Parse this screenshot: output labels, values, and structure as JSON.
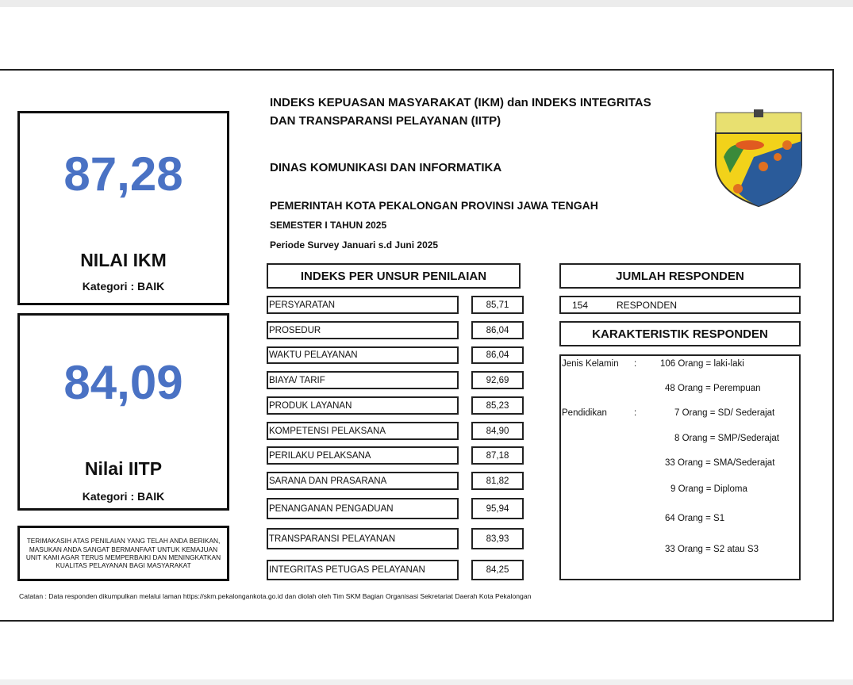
{
  "header": {
    "title_line1": "INDEKS KEPUASAN MASYARAKAT (IKM) dan INDEKS INTEGRITAS",
    "title_line2": "DAN TRANSPARANSI PELAYANAN (IITP)",
    "agency": "DINAS KOMUNIKASI DAN INFORMATIKA",
    "government": "PEMERINTAH KOTA PEKALONGAN PROVINSI JAWA TENGAH",
    "semester": "SEMESTER I TAHUN 2025",
    "period": "Periode Survey Januari s.d Juni 2025"
  },
  "ikm": {
    "value": "87,28",
    "label": "NILAI IKM",
    "category": "Kategori : BAIK"
  },
  "iitp": {
    "value": "84,09",
    "label": "Nilai IITP",
    "category": "Kategori : BAIK"
  },
  "message": "TERIMAKASIH ATAS PENILAIAN YANG TELAH ANDA BERIKAN, MASUKAN ANDA SANGAT BERMANFAAT UNTUK KEMAJUAN UNIT KAMI AGAR TERUS MEMPERBAIKI DAN MENINGKATKAN KUALITAS PELAYANAN BAGI MASYARAKAT",
  "unsur": {
    "title": "INDEKS PER UNSUR PENILAIAN",
    "rows": [
      {
        "label": "PERSYARATAN",
        "value": "85,71"
      },
      {
        "label": "PROSEDUR",
        "value": "86,04"
      },
      {
        "label": "WAKTU PELAYANAN",
        "value": "86,04"
      },
      {
        "label": "BIAYA/ TARIF",
        "value": "92,69"
      },
      {
        "label": "PRODUK LAYANAN",
        "value": "85,23"
      },
      {
        "label": "KOMPETENSI PELAKSANA",
        "value": "84,90"
      },
      {
        "label": "PERILAKU PELAKSANA",
        "value": "87,18"
      },
      {
        "label": "SARANA DAN PRASARANA",
        "value": "81,82"
      },
      {
        "label": "PENANGANAN PENGADUAN",
        "value": "95,94"
      },
      {
        "label": "TRANSPARANSI PELAYANAN",
        "value": "83,93"
      },
      {
        "label": "INTEGRITAS PETUGAS PELAYANAN",
        "value": "84,25"
      }
    ]
  },
  "responden": {
    "title": "JUMLAH RESPONDEN",
    "count": "154",
    "unit": "RESPONDEN"
  },
  "karakteristik": {
    "title": "KARAKTERISTIK RESPONDEN",
    "gender_label": "Jenis Kelamin",
    "education_label": "Pendidikan",
    "colon": ":",
    "items": [
      "106 Orang = laki-laki",
      "48 Orang = Perempuan",
      "7 Orang = SD/ Sederajat",
      "8 Orang = SMP/Sederajat",
      "33 Orang = SMA/Sederajat",
      "9 Orang = Diploma",
      "64 Orang = S1",
      "33 Orang = S2 atau S3"
    ]
  },
  "note": "Catatan : Data responden dikumpulkan melalui laman https://skm.pekalongankota.go.id dan diolah oleh Tim SKM Bagian Organisasi Sekretariat Daerah Kota Pekalongan",
  "colors": {
    "score": "#4a72c4"
  }
}
